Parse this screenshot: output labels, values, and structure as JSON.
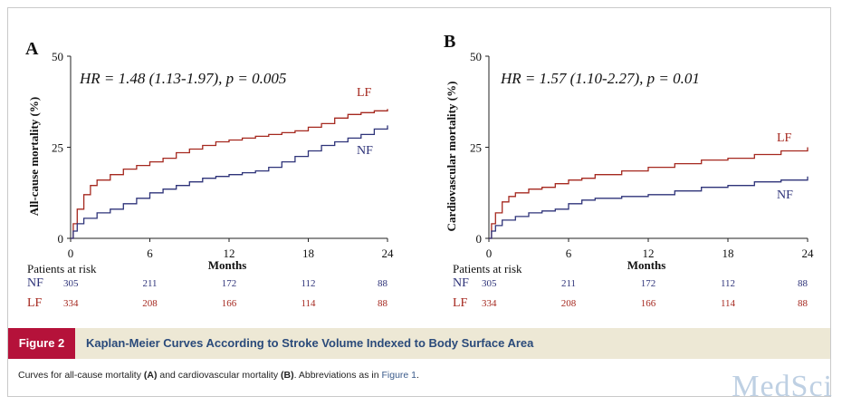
{
  "colors": {
    "lf": "#a5281f",
    "nf": "#2e3379",
    "axis": "#222222",
    "accent_red": "#b5123a",
    "title_blue": "#2a4a7a",
    "bar_bg": "#ede8d5"
  },
  "figure": {
    "tag": "Figure 2",
    "title": "Kaplan-Meier Curves According to Stroke Volume Indexed to Body Surface Area",
    "caption": {
      "p1": "Curves for all-cause mortality ",
      "a": "(A)",
      "p2": " and cardiovascular mortality ",
      "b": "(B)",
      "p3": ". Abbreviations as in ",
      "ref": "Figure 1",
      "p4": "."
    },
    "watermark": "MedSci"
  },
  "chart_data": [
    {
      "type": "line",
      "panel": "A",
      "hr_text": "HR = 1.48 (1.13-1.97), p = 0.005",
      "xlabel": "Months",
      "ylabel": "All-cause mortality (%)",
      "xlim": [
        0,
        24
      ],
      "ylim": [
        0,
        50
      ],
      "xticks": [
        "0",
        "6",
        "12",
        "18",
        "24"
      ],
      "yticks": [
        "0",
        "25",
        "50"
      ],
      "series": [
        {
          "name": "LF",
          "color": "#a5281f",
          "x": [
            0,
            0.2,
            0.5,
            1,
            1.5,
            2,
            3,
            4,
            5,
            6,
            7,
            8,
            9,
            10,
            11,
            12,
            13,
            14,
            15,
            16,
            17,
            18,
            19,
            20,
            21,
            22,
            23,
            24
          ],
          "y": [
            0,
            4,
            8,
            12,
            14.5,
            16,
            17.5,
            19,
            20,
            21,
            22,
            23.5,
            24.5,
            25.5,
            26.5,
            27,
            27.5,
            28,
            28.5,
            29,
            29.5,
            30.5,
            31.5,
            33,
            34,
            34.5,
            35,
            35.5
          ]
        },
        {
          "name": "NF",
          "color": "#2e3379",
          "x": [
            0,
            0.2,
            0.5,
            1,
            2,
            3,
            4,
            5,
            6,
            7,
            8,
            9,
            10,
            11,
            12,
            13,
            14,
            15,
            16,
            17,
            18,
            19,
            20,
            21,
            22,
            23,
            24
          ],
          "y": [
            0,
            2,
            4,
            5.5,
            7,
            8,
            9.5,
            11,
            12.5,
            13.5,
            14.5,
            15.5,
            16.5,
            17,
            17.5,
            18,
            18.5,
            19.5,
            21,
            22.5,
            24,
            25.5,
            26.5,
            27.5,
            28.5,
            30,
            31
          ]
        }
      ],
      "risk_table": {
        "title": "Patients at risk",
        "x": [
          0,
          6,
          12,
          18,
          24
        ],
        "rows": [
          {
            "label": "NF",
            "values": [
              "305",
              "211",
              "172",
              "112",
              "88"
            ]
          },
          {
            "label": "LF",
            "values": [
              "334",
              "208",
              "166",
              "114",
              "88"
            ]
          }
        ]
      }
    },
    {
      "type": "line",
      "panel": "B",
      "hr_text": "HR = 1.57 (1.10-2.27), p = 0.01",
      "xlabel": "Months",
      "ylabel": "Cardiovascular mortality (%)",
      "xlim": [
        0,
        24
      ],
      "ylim": [
        0,
        50
      ],
      "xticks": [
        "0",
        "6",
        "12",
        "18",
        "24"
      ],
      "yticks": [
        "0",
        "25",
        "50"
      ],
      "series": [
        {
          "name": "LF",
          "color": "#a5281f",
          "x": [
            0,
            0.2,
            0.5,
            1,
            1.5,
            2,
            3,
            4,
            5,
            6,
            7,
            8,
            10,
            12,
            14,
            16,
            18,
            20,
            22,
            24
          ],
          "y": [
            0,
            4,
            7,
            10,
            11.5,
            12.5,
            13.5,
            14,
            15,
            16,
            16.5,
            17.5,
            18.5,
            19.5,
            20.5,
            21.5,
            22,
            23,
            24,
            25
          ]
        },
        {
          "name": "NF",
          "color": "#2e3379",
          "x": [
            0,
            0.2,
            0.5,
            1,
            2,
            3,
            4,
            5,
            6,
            7,
            8,
            10,
            12,
            14,
            16,
            18,
            20,
            22,
            24
          ],
          "y": [
            0,
            2,
            3.5,
            5,
            6,
            7,
            7.5,
            8,
            9.5,
            10.5,
            11,
            11.5,
            12,
            13,
            14,
            14.5,
            15.5,
            16,
            17
          ]
        }
      ],
      "risk_table": {
        "title": "Patients at risk",
        "x": [
          0,
          6,
          12,
          18,
          24
        ],
        "rows": [
          {
            "label": "NF",
            "values": [
              "305",
              "211",
              "172",
              "112",
              "88"
            ]
          },
          {
            "label": "LF",
            "values": [
              "334",
              "208",
              "166",
              "114",
              "88"
            ]
          }
        ]
      }
    }
  ]
}
